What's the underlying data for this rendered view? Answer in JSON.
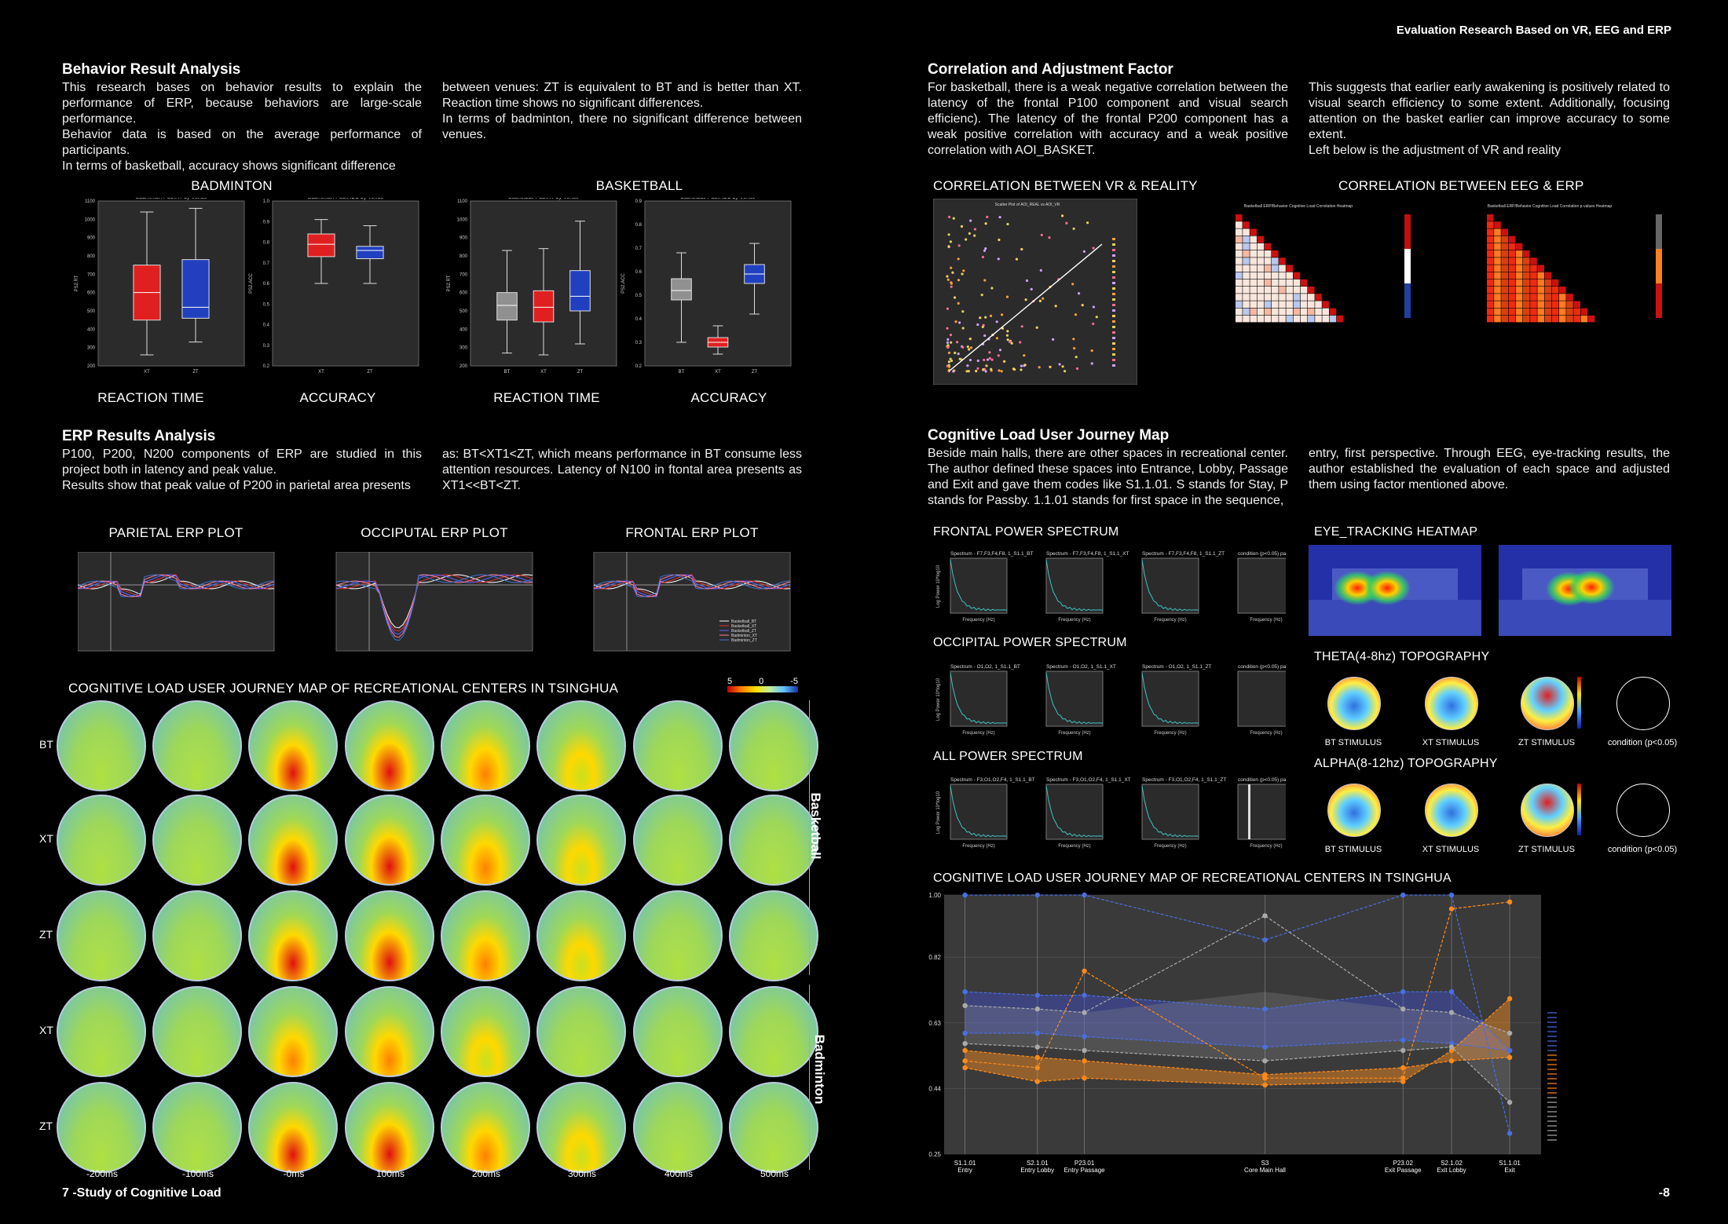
{
  "header": {
    "title": "Evaluation Research Based on VR, EEG and ERP"
  },
  "behavior": {
    "title": "Behavior Result Analysis",
    "col1": [
      "This research bases on behavior results to explain the performance of ERP, because behaviors are large-scale performance.",
      "Behavior data is based on the average performance of participants.",
      "In terms of basketball, accuracy shows significant difference"
    ],
    "col2": [
      "between venues: ZT is equivalent to BT and is better than XT. Reaction time shows no significant differences.",
      "In terms of badminton, there no significant difference between venues."
    ]
  },
  "boxplots": {
    "badminton_label": "BADMINTON",
    "basketball_label": "BASKETBALL",
    "reaction_time": "REACTION TIME",
    "accuracy": "ACCURACY",
    "plots": [
      {
        "title": "Badminton PS2.RT by Venue",
        "ylabel": "PS2.RT",
        "xlabel": "Venue",
        "yticks": [
          "1100",
          "1000",
          "900",
          "800",
          "700",
          "600",
          "500",
          "400",
          "300",
          "200"
        ],
        "cats": [
          "XT",
          "ZT"
        ],
        "colors": [
          "#e02020",
          "#2040c0"
        ],
        "boxes": [
          {
            "min": 260,
            "q1": 450,
            "med": 600,
            "q3": 750,
            "max": 1040
          },
          {
            "min": 330,
            "q1": 460,
            "med": 520,
            "q3": 780,
            "max": 1060
          }
        ],
        "ylim": [
          200,
          1100
        ]
      },
      {
        "title": "Badminton PS2.ACC by Venue",
        "ylabel": "PS2.ACC",
        "xlabel": "Venue",
        "yticks": [
          "1.0",
          "0.9",
          "0.8",
          "0.7",
          "0.6",
          "0.5",
          "0.4",
          "0.3",
          "0.2"
        ],
        "cats": [
          "XT",
          "ZT"
        ],
        "colors": [
          "#e02020",
          "#2040c0"
        ],
        "boxes": [
          {
            "min": 0.6,
            "q1": 0.73,
            "med": 0.79,
            "q3": 0.84,
            "max": 0.91
          },
          {
            "min": 0.6,
            "q1": 0.72,
            "med": 0.76,
            "q3": 0.78,
            "max": 0.88
          }
        ],
        "ylim": [
          0.2,
          1.0
        ]
      },
      {
        "title": "Basketball PS2.RT by Venue",
        "ylabel": "PS2.RT",
        "xlabel": "Venue",
        "yticks": [
          "1100",
          "1000",
          "900",
          "800",
          "700",
          "600",
          "500",
          "400",
          "300",
          "200"
        ],
        "cats": [
          "BT",
          "XT",
          "ZT"
        ],
        "colors": [
          "#909090",
          "#e02020",
          "#2040c0"
        ],
        "boxes": [
          {
            "min": 270,
            "q1": 450,
            "med": 530,
            "q3": 600,
            "max": 830
          },
          {
            "min": 260,
            "q1": 440,
            "med": 520,
            "q3": 610,
            "max": 840
          },
          {
            "min": 320,
            "q1": 500,
            "med": 580,
            "q3": 720,
            "max": 990
          }
        ],
        "ylim": [
          200,
          1100
        ]
      },
      {
        "title": "Basketball PS2.ACC by Venue",
        "ylabel": "PS2.ACC",
        "xlabel": "Venue",
        "yticks": [
          "0.9",
          "0.8",
          "0.7",
          "0.6",
          "0.5",
          "0.4",
          "0.3",
          "0.2"
        ],
        "cats": [
          "BT",
          "XT",
          "ZT"
        ],
        "colors": [
          "#909090",
          "#e02020",
          "#2040c0"
        ],
        "boxes": [
          {
            "min": 0.3,
            "q1": 0.48,
            "med": 0.52,
            "q3": 0.57,
            "max": 0.68
          },
          {
            "min": 0.25,
            "q1": 0.28,
            "med": 0.3,
            "q3": 0.32,
            "max": 0.37
          },
          {
            "min": 0.42,
            "q1": 0.55,
            "med": 0.59,
            "q3": 0.63,
            "max": 0.72
          }
        ],
        "ylim": [
          0.2,
          0.9
        ]
      }
    ]
  },
  "erp": {
    "title": "ERP Results Analysis",
    "col1": [
      "P100, P200, N200 components of ERP are studied in this project both in latency and peak value.",
      "Results show that peak value of P200 in parietal area presents"
    ],
    "col2": [
      "as: BT<XT1<ZT, which means performance in BT consume less attention resources. Latency of N100 in ftontal area presents as XT1<<BT<ZT."
    ],
    "plots": [
      "PARIETAL ERP PLOT",
      "OCCIPUTAL ERP PLOT",
      "FRONTAL ERP PLOT"
    ],
    "legend": [
      "Basketball_BT",
      "Basketball_XT",
      "Basketball_ZT",
      "Badminton_XT",
      "Badminton_ZT"
    ]
  },
  "topo_grid": {
    "title": "COGNITIVE LOAD USER JOURNEY MAP OF RECREATIONAL CENTERS IN TSINGHUA",
    "colorbar": [
      "5",
      "0",
      "-5"
    ],
    "rows": [
      "BT",
      "XT",
      "ZT",
      "XT",
      "ZT"
    ],
    "groups": [
      "Basketball",
      "Badminton"
    ],
    "times": [
      "-200ms",
      "-100ms",
      "-0ms",
      "100ms",
      "200ms",
      "300ms",
      "400ms",
      "500ms"
    ]
  },
  "footer_left": "7 -Study of Cognitive Load",
  "footer_right": "-8",
  "correlation": {
    "title": "Correlation and Adjustment Factor",
    "col1": "For basketball, there is a weak negative correlation between the latency of the frontal P100 component and visual search efficienc). The latency of the frontal P200 component has a weak positive correlation with accuracy and a weak positive correlation with AOI_BASKET.",
    "col2": [
      "This suggests that earlier early awakening is positively related to visual search efficiency to some extent. Additionally, focusing attention on the basket earlier can improve accuracy to some extent.",
      "Left below is the adjustment of VR and reality"
    ],
    "vr_label": "CORRELATION BETWEEN VR & REALITY",
    "eeg_label": "CORRELATION BETWEEN EEG & ERP",
    "scatter_title": "Scatter Plot of AOI_REAL vs AOI_VR",
    "heat1_title": "Basketball ERP/Behavior Cognitive Load Correlation Heatmap",
    "heat2_title": "Basketball ERP/Behavior Cognitive Load Correlation p-values Heatmap"
  },
  "journey": {
    "title": "Cognitive Load User Journey Map",
    "col1": "Beside main halls, there are other spaces in recreational center. The author defined these spaces into Entrance, Lobby, Passage and Exit and gave them codes like S1.1.01. S stands for Stay, P stands for Passby. 1.1.01 stands for first space in the sequence,",
    "col2": "entry, first perspective. Through EEG, eye-tracking results, the author established the evaluation of each space and adjusted them using factor mentioned above."
  },
  "spectrum": {
    "frontal": "FRONTAL POWER SPECTRUM",
    "occipital": "OCCIPITAL POWER SPECTRUM",
    "all": "ALL POWER SPECTRUM",
    "frontal_titles": [
      "Spectrum - F7,F3,F4,F8, 1_S1.1_BT",
      "Spectrum - F7,F3,F4,F8, 1_S1.1_XT",
      "Spectrum - F7,F3,F4,F8, 1_S1.1_ZT",
      "condition (p<0.05) param"
    ],
    "occipital_titles": [
      "Spectrum - O1,O2, 1_S1.1_BT",
      "Spectrum - O1,O2, 1_S1.1_XT",
      "Spectrum - O1,O2, 1_S1.1_ZT",
      "condition (p<0.05) param"
    ],
    "all_titles": [
      "Spectrum - F3,O1,O2,F4, 1_S1.1_BT",
      "Spectrum - F3,O1,O2,F4, 1_S1.1_XT",
      "Spectrum - F3,O1,O2,F4, 1_S1.1_ZT",
      "condition (p<0.05) param"
    ],
    "xlabel": "Frequency (Hz)",
    "ylabel": "Log Power 10*log10"
  },
  "eyetracking": {
    "title": "EYE_TRACKING HEATMAP"
  },
  "topo_small": {
    "theta": "THETA(4-8hz) TOPOGRAPHY",
    "alpha": "ALPHA(8-12hz) TOPOGRAPHY",
    "labels": [
      "BT STIMULUS",
      "XT STIMULUS",
      "ZT STIMULUS",
      "condition (p<0.05)"
    ]
  },
  "journey_chart": {
    "title": "COGNITIVE LOAD USER JOURNEY MAP OF RECREATIONAL CENTERS IN TSINGHUA",
    "yticks": [
      "1.00",
      "0.82",
      "0.63",
      "0.44",
      "0.25"
    ],
    "stations": [
      {
        "code": "S1.1.01",
        "name": "Entry"
      },
      {
        "code": "S2.1.01",
        "name": "Entry Lobby"
      },
      {
        "code": "P23.01",
        "name": "Entry Passage"
      },
      {
        "code": "S3",
        "name": "Core Main Hall"
      },
      {
        "code": "P23.02",
        "name": "Exit Passage"
      },
      {
        "code": "S2.1.02",
        "name": "Exit Lobby"
      },
      {
        "code": "S1.1.01",
        "name": "Exit"
      }
    ]
  },
  "chart_data": {
    "type": "line",
    "title": "COGNITIVE LOAD USER JOURNEY MAP OF RECREATIONAL CENTERS IN TSINGHUA",
    "categories": [
      "S1.1.01 Entry",
      "S2.1.01 Entry Lobby",
      "P23.01 Entry Passage",
      "S3 Core Main Hall",
      "P23.02 Exit Passage",
      "S2.1.02 Exit Lobby",
      "S1.1.01 Exit"
    ],
    "ylim": [
      0.25,
      1.0
    ],
    "series": [
      {
        "color": "#4a6fe0",
        "values": [
          1.0,
          1.0,
          1.0,
          0.87,
          1.0,
          1.0,
          0.31
        ]
      },
      {
        "color": "#4a6fe0",
        "values": [
          0.72,
          0.71,
          0.71,
          0.67,
          0.72,
          0.72,
          0.55
        ]
      },
      {
        "color": "#4a6fe0",
        "values": [
          0.6,
          0.6,
          0.59,
          0.56,
          0.58,
          0.57,
          0.55
        ]
      },
      {
        "color": "#ff8a1a",
        "values": [
          0.52,
          0.5,
          0.78,
          0.47,
          0.47,
          0.96,
          0.98
        ]
      },
      {
        "color": "#ff8a1a",
        "values": [
          0.5,
          0.46,
          0.47,
          0.45,
          0.46,
          0.55,
          0.7
        ]
      },
      {
        "color": "#ff8a1a",
        "values": [
          0.55,
          0.53,
          0.52,
          0.48,
          0.5,
          0.52,
          0.53
        ]
      },
      {
        "color": "#aaaaaa",
        "values": [
          0.68,
          0.67,
          0.66,
          0.94,
          0.67,
          0.66,
          0.6
        ]
      },
      {
        "color": "#aaaaaa",
        "values": [
          0.57,
          0.56,
          0.55,
          0.52,
          0.55,
          0.56,
          0.4
        ]
      }
    ]
  }
}
